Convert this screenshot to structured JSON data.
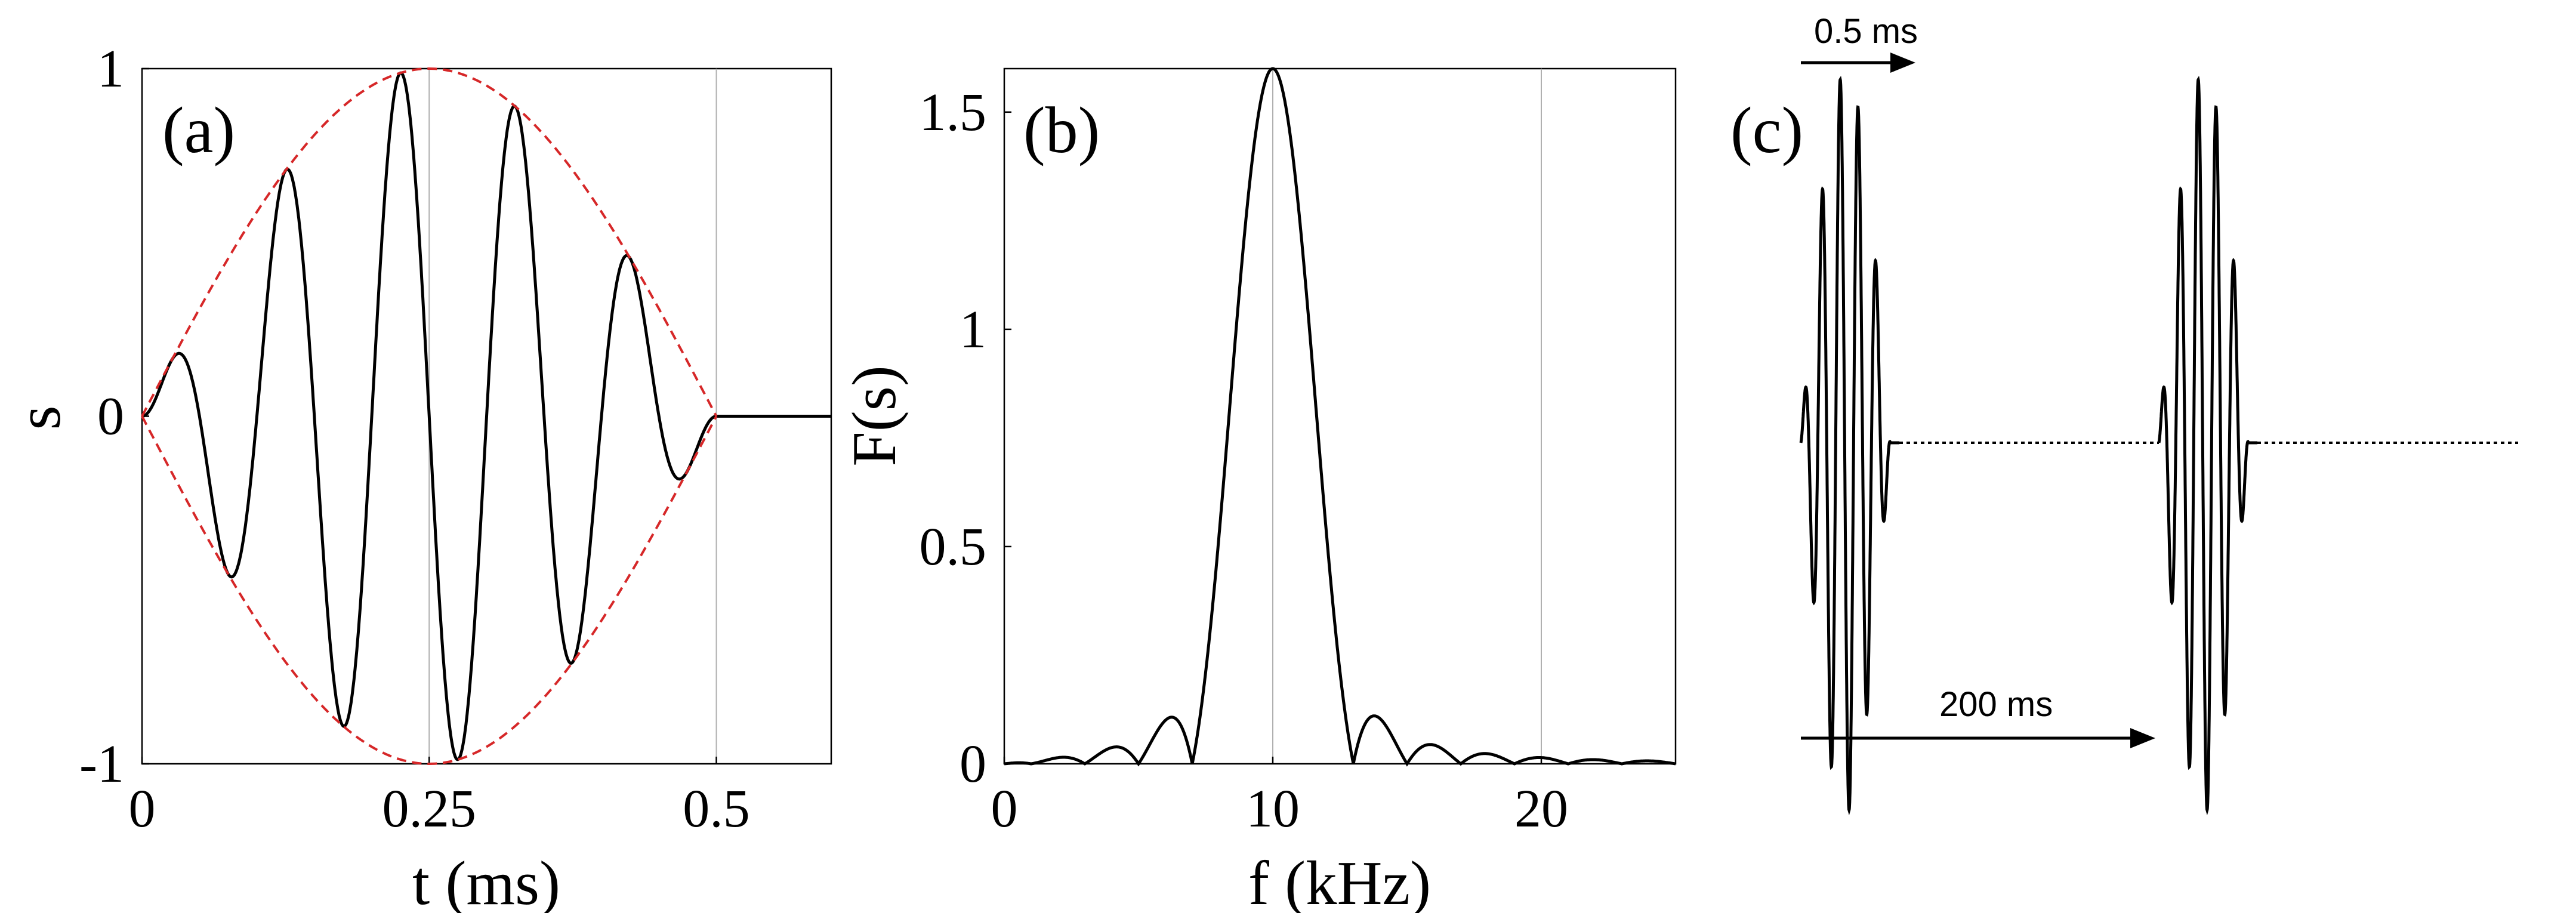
{
  "chart_data": [
    {
      "panel_label": "(a)",
      "type": "line",
      "xlabel": "t (ms)",
      "ylabel": "s",
      "xlim": [
        0,
        0.6
      ],
      "ylim": [
        -1,
        1
      ],
      "xticks": [
        0,
        0.25,
        0.5
      ],
      "xtick_labels": [
        "0",
        "0.25",
        "0.5"
      ],
      "yticks": [
        -1,
        0,
        1
      ],
      "ytick_labels": [
        "-1",
        "0",
        "1"
      ],
      "vertical_gridlines_x": [
        0.25,
        0.5
      ],
      "series": [
        {
          "color": "#000000",
          "style": "solid",
          "description_values": "sin-windowed 10 kHz tone burst, 0 to 0.5 ms, zero after",
          "x": [
            0,
            0.035,
            0.08,
            0.125,
            0.175,
            0.225,
            0.275,
            0.325,
            0.375,
            0.425,
            0.47,
            0.5,
            0.6
          ],
          "y": [
            0,
            0.18,
            -0.47,
            0.71,
            -0.88,
            0.98,
            -0.98,
            0.89,
            -0.71,
            0.46,
            -0.18,
            0,
            0
          ]
        },
        {
          "color": "#d62728",
          "style": "dashed",
          "x": [
            0,
            0.125,
            0.25,
            0.375,
            0.5
          ],
          "y": [
            0,
            0.707,
            1,
            0.707,
            0
          ]
        },
        {
          "color": "#d62728",
          "style": "dashed",
          "x": [
            0,
            0.125,
            0.25,
            0.375,
            0.5
          ],
          "y": [
            0,
            -0.707,
            -1,
            -0.707,
            0
          ]
        }
      ]
    },
    {
      "panel_label": "(b)",
      "type": "line",
      "xlabel": "f (kHz)",
      "ylabel": "F(s)",
      "xlim": [
        0,
        25
      ],
      "ylim": [
        0,
        1.6
      ],
      "xticks": [
        0,
        10,
        20
      ],
      "xtick_labels": [
        "0",
        "10",
        "20"
      ],
      "yticks": [
        0,
        0.5,
        1,
        1.5
      ],
      "ytick_labels": [
        "0",
        "0.5",
        "1",
        "1.5"
      ],
      "vertical_gridlines_x": [
        10,
        20
      ],
      "series": [
        {
          "color": "#000000",
          "style": "solid",
          "x": [
            0,
            1,
            2,
            3,
            4,
            5,
            6,
            6.5,
            7,
            8,
            9,
            10,
            11,
            12,
            13,
            13.5,
            14,
            15,
            16,
            17,
            18,
            19,
            20,
            21,
            22,
            23,
            24,
            25
          ],
          "y": [
            0.0,
            0.01,
            0.02,
            0.0,
            0.04,
            0.0,
            0.1,
            0.11,
            0.0,
            0.75,
            1.35,
            1.6,
            1.35,
            0.75,
            0.0,
            0.11,
            0.1,
            0.0,
            0.04,
            0.0,
            0.02,
            0.0,
            0.01,
            0.0,
            0.01,
            0.0,
            0.005,
            0.0
          ]
        }
      ]
    },
    {
      "panel_label": "(c)",
      "type": "line",
      "annotations": [
        {
          "text": "0.5 ms",
          "kind": "arrow-right"
        },
        {
          "text": "200 ms",
          "kind": "arrow-right"
        }
      ],
      "series": [
        {
          "color": "#000000",
          "style": "solid",
          "description_values": "two tone bursts separated by 200 ms, dotted zero line between",
          "burst_peaks": [
            0.08,
            -0.2,
            0.62,
            -0.85,
            0.98,
            -1.0,
            0.9,
            -0.7,
            0.42,
            -0.1
          ]
        }
      ]
    }
  ]
}
